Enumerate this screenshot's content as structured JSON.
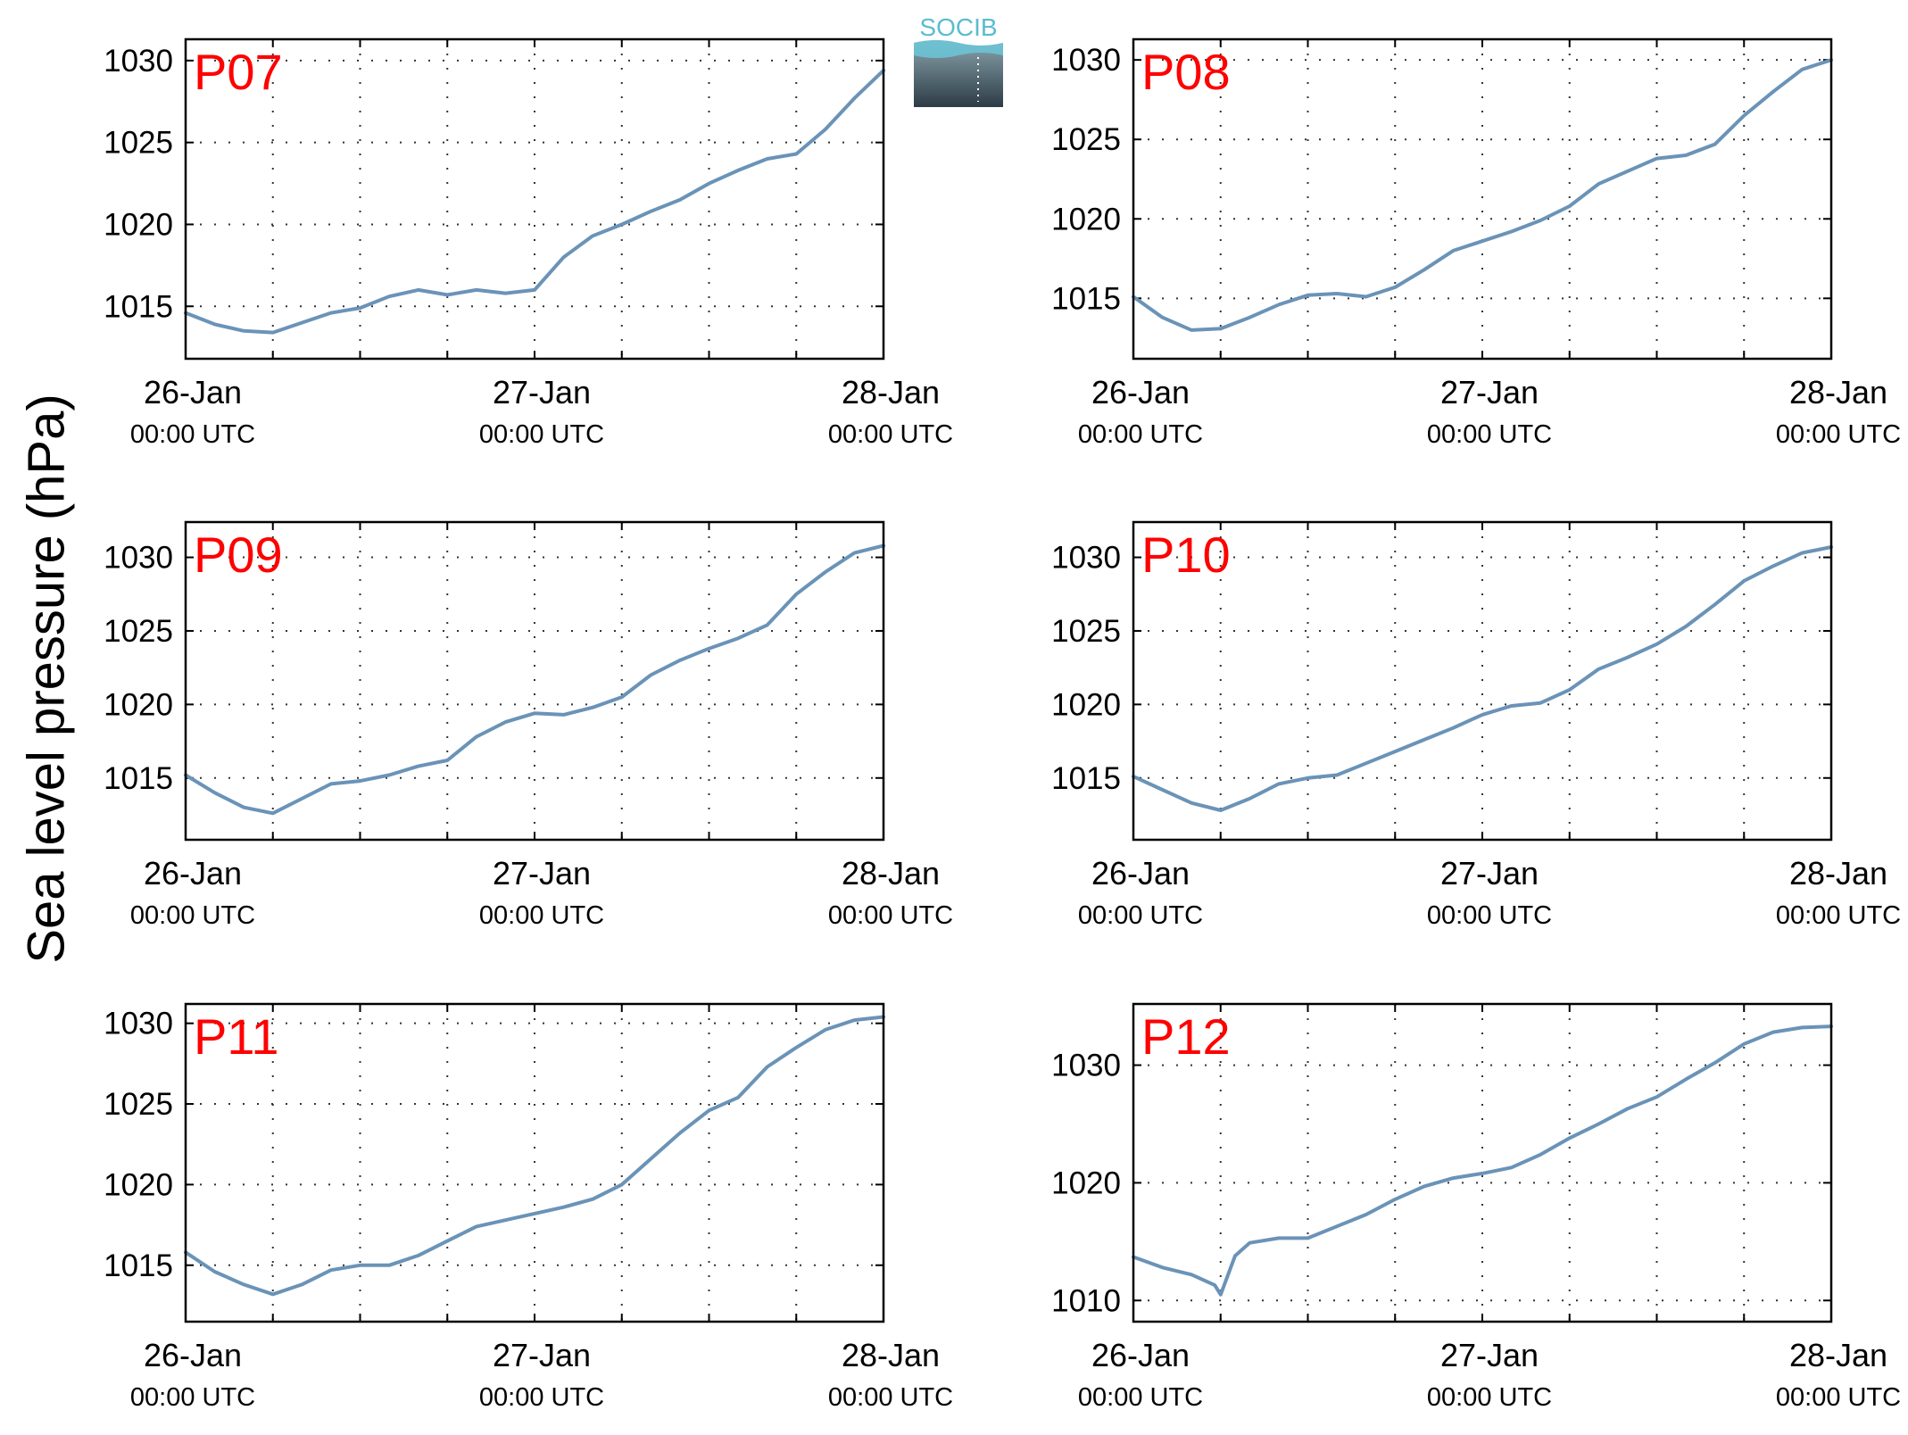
{
  "figure": {
    "ylabel": "Sea level pressure (hPa)",
    "logo_text": "SOCIB",
    "line_color": "#6a93b7",
    "station_label_color": "#ff0000"
  },
  "chart_data": [
    {
      "type": "line",
      "station": "P07",
      "xlim": [
        "2016-01-26 00:00",
        "2016-01-28 00:00"
      ],
      "xticks": [
        {
          "date": "26-Jan",
          "time": "00:00 UTC"
        },
        {
          "date": "27-Jan",
          "time": "00:00 UTC"
        },
        {
          "date": "28-Jan",
          "time": "00:00 UTC"
        }
      ],
      "ylim": [
        1011.8,
        1031.3
      ],
      "yticks": [
        1015,
        1020,
        1025,
        1030
      ],
      "grid": true,
      "series": [
        {
          "x": [
            0,
            2,
            4,
            6,
            8,
            10,
            12,
            14,
            16,
            18,
            20,
            22,
            24,
            26,
            28,
            30,
            32,
            34,
            36,
            38,
            40,
            42,
            44,
            46,
            48
          ],
          "y": [
            1014.6,
            1013.9,
            1013.5,
            1013.4,
            1014.0,
            1014.6,
            1014.9,
            1015.6,
            1016.0,
            1015.7,
            1016.0,
            1015.8,
            1016.0,
            1018.0,
            1019.3,
            1020.0,
            1020.8,
            1021.5,
            1022.5,
            1023.3,
            1024.0,
            1024.3,
            1025.8,
            1027.7,
            1029.4
          ]
        }
      ]
    },
    {
      "type": "line",
      "station": "P08",
      "xlim": [
        "2016-01-26 00:00",
        "2016-01-28 00:00"
      ],
      "xticks": [
        {
          "date": "26-Jan",
          "time": "00:00 UTC"
        },
        {
          "date": "27-Jan",
          "time": "00:00 UTC"
        },
        {
          "date": "28-Jan",
          "time": "00:00 UTC"
        }
      ],
      "ylim": [
        1011.2,
        1031.3
      ],
      "yticks": [
        1015,
        1020,
        1025,
        1030
      ],
      "grid": true,
      "series": [
        {
          "x": [
            0,
            2,
            4,
            6,
            8,
            10,
            12,
            14,
            16,
            18,
            20,
            22,
            24,
            26,
            28,
            30,
            32,
            34,
            36,
            38,
            40,
            42,
            44,
            46,
            48
          ],
          "y": [
            1015.1,
            1013.8,
            1013.0,
            1013.1,
            1013.8,
            1014.6,
            1015.2,
            1015.3,
            1015.1,
            1015.7,
            1016.8,
            1018.0,
            1018.6,
            1019.2,
            1019.9,
            1020.8,
            1022.2,
            1023.0,
            1023.8,
            1024.0,
            1024.7,
            1026.5,
            1028.0,
            1029.4,
            1030.0
          ]
        }
      ]
    },
    {
      "type": "line",
      "station": "P09",
      "xlim": [
        "2016-01-26 00:00",
        "2016-01-28 00:00"
      ],
      "xticks": [
        {
          "date": "26-Jan",
          "time": "00:00 UTC"
        },
        {
          "date": "27-Jan",
          "time": "00:00 UTC"
        },
        {
          "date": "28-Jan",
          "time": "00:00 UTC"
        }
      ],
      "ylim": [
        1010.8,
        1032.4
      ],
      "yticks": [
        1015,
        1020,
        1025,
        1030
      ],
      "grid": true,
      "series": [
        {
          "x": [
            0,
            2,
            4,
            6,
            8,
            10,
            12,
            14,
            16,
            18,
            20,
            22,
            24,
            26,
            28,
            30,
            32,
            34,
            36,
            38,
            40,
            42,
            44,
            46,
            48
          ],
          "y": [
            1015.2,
            1014.0,
            1013.0,
            1012.6,
            1013.6,
            1014.6,
            1014.8,
            1015.2,
            1015.8,
            1016.2,
            1017.8,
            1018.8,
            1019.4,
            1019.3,
            1019.8,
            1020.5,
            1022.0,
            1023.0,
            1023.8,
            1024.5,
            1025.4,
            1027.5,
            1029.0,
            1030.3,
            1030.8
          ]
        }
      ]
    },
    {
      "type": "line",
      "station": "P10",
      "xlim": [
        "2016-01-26 00:00",
        "2016-01-28 00:00"
      ],
      "xticks": [
        {
          "date": "26-Jan",
          "time": "00:00 UTC"
        },
        {
          "date": "27-Jan",
          "time": "00:00 UTC"
        },
        {
          "date": "28-Jan",
          "time": "00:00 UTC"
        }
      ],
      "ylim": [
        1010.8,
        1032.4
      ],
      "yticks": [
        1015,
        1020,
        1025,
        1030
      ],
      "grid": true,
      "series": [
        {
          "x": [
            0,
            2,
            4,
            6,
            8,
            10,
            12,
            14,
            16,
            18,
            20,
            22,
            24,
            26,
            28,
            30,
            32,
            34,
            36,
            38,
            40,
            42,
            44,
            46,
            48
          ],
          "y": [
            1015.1,
            1014.2,
            1013.3,
            1012.8,
            1013.6,
            1014.6,
            1015.0,
            1015.2,
            1016.0,
            1016.8,
            1017.6,
            1018.4,
            1019.3,
            1019.9,
            1020.1,
            1021.0,
            1022.4,
            1023.2,
            1024.1,
            1025.3,
            1026.8,
            1028.4,
            1029.4,
            1030.3,
            1030.7
          ]
        }
      ]
    },
    {
      "type": "line",
      "station": "P11",
      "xlim": [
        "2016-01-26 00:00",
        "2016-01-28 00:00"
      ],
      "xticks": [
        {
          "date": "26-Jan",
          "time": "00:00 UTC"
        },
        {
          "date": "27-Jan",
          "time": "00:00 UTC"
        },
        {
          "date": "28-Jan",
          "time": "00:00 UTC"
        }
      ],
      "ylim": [
        1011.5,
        1031.2
      ],
      "yticks": [
        1015,
        1020,
        1025,
        1030
      ],
      "grid": true,
      "series": [
        {
          "x": [
            0,
            2,
            4,
            6,
            8,
            10,
            12,
            14,
            16,
            18,
            20,
            22,
            24,
            26,
            28,
            30,
            32,
            34,
            36,
            38,
            40,
            42,
            44,
            46,
            48
          ],
          "y": [
            1015.8,
            1014.6,
            1013.8,
            1013.2,
            1013.8,
            1014.7,
            1015.0,
            1015.0,
            1015.6,
            1016.5,
            1017.4,
            1017.8,
            1018.2,
            1018.6,
            1019.1,
            1020.0,
            1021.6,
            1023.2,
            1024.6,
            1025.4,
            1027.3,
            1028.5,
            1029.6,
            1030.2,
            1030.4
          ]
        }
      ]
    },
    {
      "type": "line",
      "station": "P12",
      "xlim": [
        "2016-01-26 00:00",
        "2016-01-28 00:00"
      ],
      "xticks": [
        {
          "date": "26-Jan",
          "time": "00:00 UTC"
        },
        {
          "date": "27-Jan",
          "time": "00:00 UTC"
        },
        {
          "date": "28-Jan",
          "time": "00:00 UTC"
        }
      ],
      "ylim": [
        1008.2,
        1035.2
      ],
      "yticks": [
        1010,
        1020,
        1030
      ],
      "grid": true,
      "series": [
        {
          "x": [
            0,
            2,
            4,
            5.6,
            6,
            7,
            8,
            10,
            12,
            14,
            16,
            18,
            20,
            22,
            24,
            26,
            28,
            30,
            32,
            34,
            36,
            38,
            40,
            42,
            44,
            46,
            48
          ],
          "y": [
            1013.7,
            1012.8,
            1012.2,
            1011.3,
            1010.5,
            1013.8,
            1014.9,
            1015.3,
            1015.3,
            1016.3,
            1017.3,
            1018.6,
            1019.7,
            1020.4,
            1020.8,
            1021.3,
            1022.4,
            1023.8,
            1025.0,
            1026.3,
            1027.3,
            1028.8,
            1030.2,
            1031.8,
            1032.8,
            1033.2,
            1033.3
          ]
        }
      ]
    }
  ]
}
